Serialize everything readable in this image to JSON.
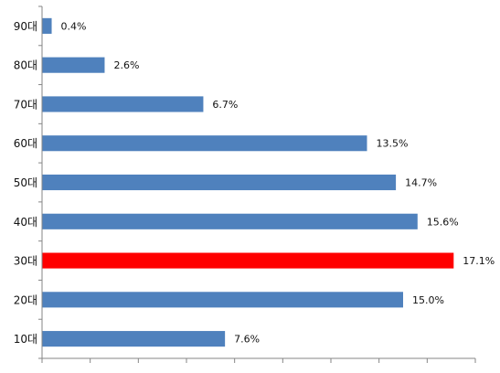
{
  "chart_data": {
    "type": "bar",
    "orientation": "horizontal",
    "title": "",
    "xlabel": "",
    "ylabel": "",
    "categories": [
      "90대",
      "80대",
      "70대",
      "60대",
      "50대",
      "40대",
      "30대",
      "20대",
      "10대"
    ],
    "values": [
      0.4,
      2.6,
      6.7,
      13.5,
      14.7,
      15.6,
      17.1,
      15.0,
      7.6
    ],
    "value_labels": [
      "0.4%",
      "2.6%",
      "6.7%",
      "13.5%",
      "14.7%",
      "15.6%",
      "17.1%",
      "15.0%",
      "7.6%"
    ],
    "value_unit": "%",
    "xlim": [
      0,
      18
    ],
    "x_ticks": 9,
    "grid": false,
    "legend": "none",
    "colors": {
      "bar": "#4F81BD",
      "highlight": "#FF0000",
      "axis": "#868686"
    },
    "highlight_category": "30대"
  }
}
